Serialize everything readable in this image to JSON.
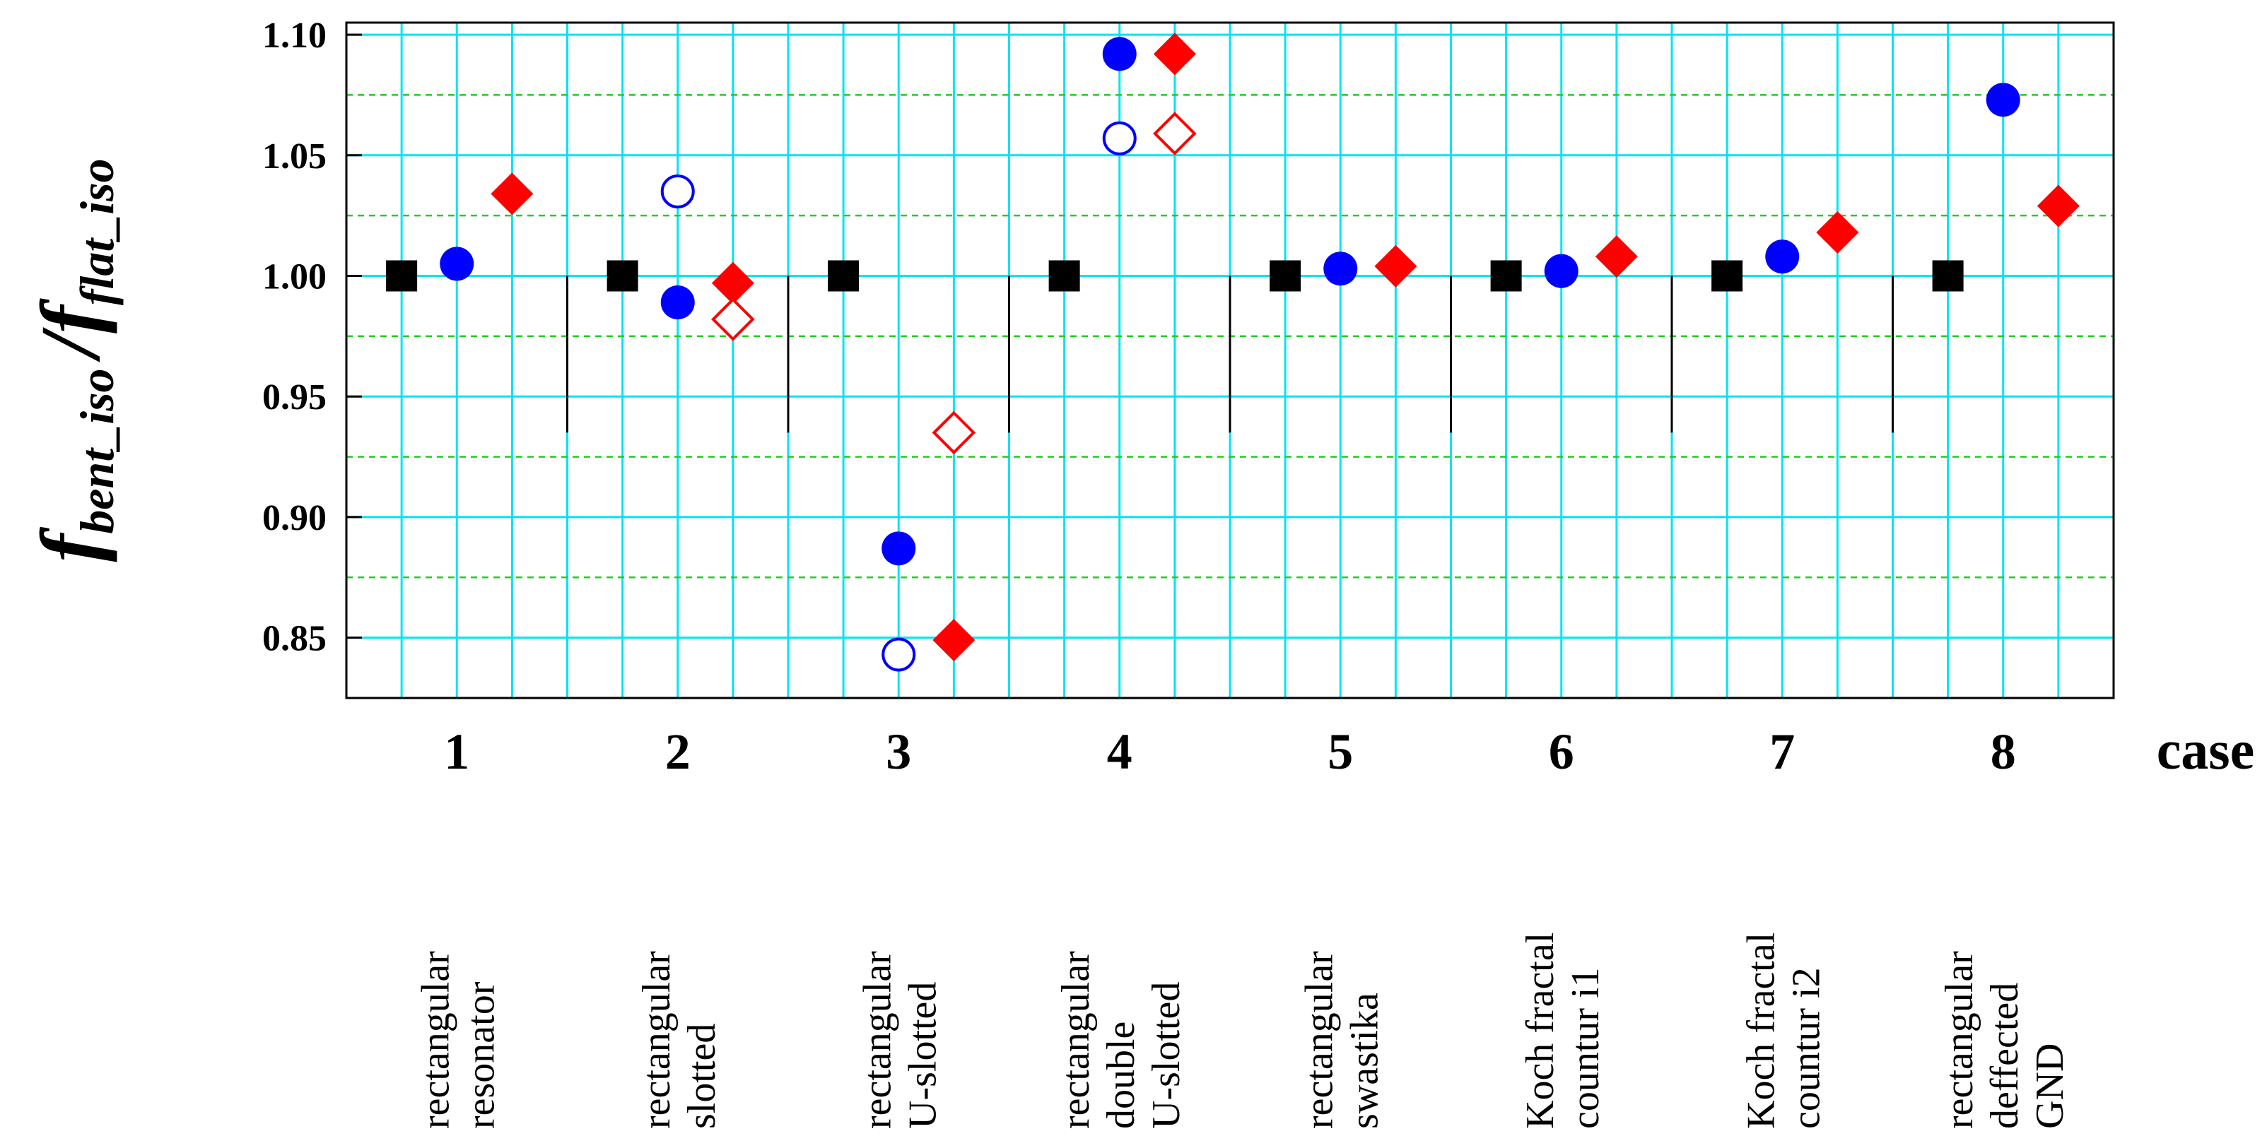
{
  "chart_data": {
    "type": "scatter",
    "title": "",
    "ylabel": {
      "f1": "f",
      "sub1": "bent_iso",
      "slash": "/",
      "f2": "f",
      "sub2": "flat_iso"
    },
    "xlabel": "case",
    "ylim": [
      0.825,
      1.105
    ],
    "yticks": [
      "1.10",
      "1.05",
      "1.00",
      "0.95",
      "0.90",
      "0.85"
    ],
    "ytick_values": [
      1.1,
      1.05,
      1.0,
      0.95,
      0.9,
      0.85
    ],
    "grid": true,
    "categories": [
      "1",
      "2",
      "3",
      "4",
      "5",
      "6",
      "7",
      "8"
    ],
    "case_descriptions": [
      [
        "rectangular",
        "resonator"
      ],
      [
        "rectangular",
        "slotted"
      ],
      [
        "rectangular",
        "U-slotted"
      ],
      [
        "rectangular",
        "double",
        "U-slotted"
      ],
      [
        "rectangular",
        "swastika"
      ],
      [
        "Koch fractal",
        "countur i1"
      ],
      [
        "Koch fractal",
        "countur i2"
      ],
      [
        "rectangular",
        "deffected",
        "GND"
      ]
    ],
    "series": [
      {
        "marker": "square-filled",
        "color": "#000000",
        "offset": -0.25,
        "values": [
          1.0,
          1.0,
          1.0,
          1.0,
          1.0,
          1.0,
          1.0,
          1.0
        ]
      },
      {
        "marker": "circle-filled",
        "color": "#0000ff",
        "offset": 0.0,
        "values": [
          1.005,
          0.989,
          0.887,
          1.092,
          1.003,
          1.002,
          1.008,
          1.073
        ]
      },
      {
        "marker": "circle-open",
        "color": "#0000ff",
        "offset": 0.0,
        "values": [
          null,
          1.035,
          0.843,
          1.057,
          null,
          null,
          null,
          null
        ]
      },
      {
        "marker": "diamond-filled",
        "color": "#ff0000",
        "offset": 0.25,
        "values": [
          1.034,
          0.997,
          0.849,
          1.092,
          1.004,
          1.008,
          1.018,
          1.029
        ]
      },
      {
        "marker": "diamond-open",
        "color": "#ff0000",
        "offset": 0.25,
        "values": [
          null,
          0.982,
          0.935,
          1.059,
          null,
          null,
          null,
          null
        ]
      }
    ],
    "colors": {
      "major_grid": "#00e5f0",
      "minor_grid": "#22cc22",
      "frame": "#000000"
    }
  }
}
